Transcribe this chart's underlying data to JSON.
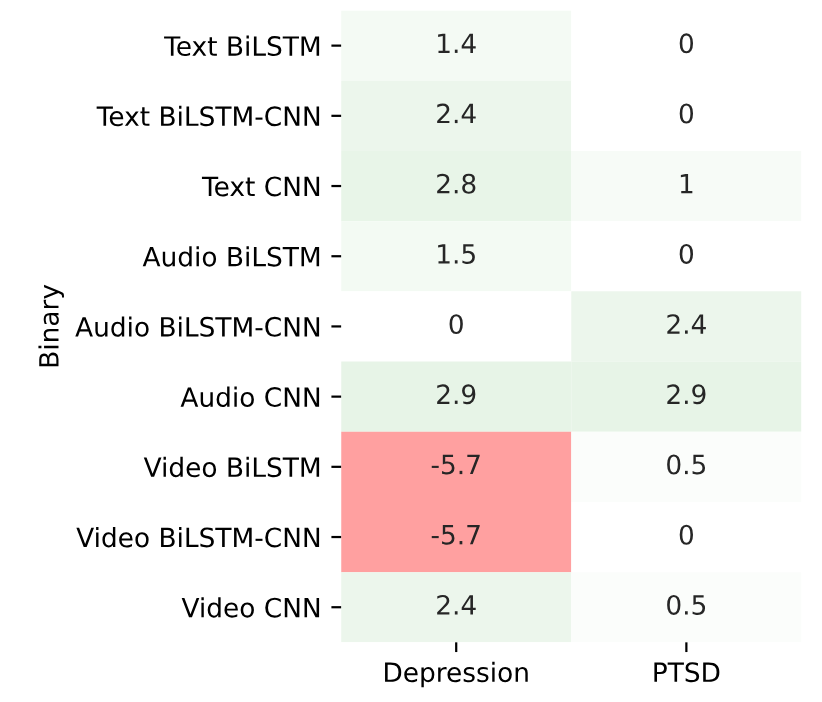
{
  "chart_data": {
    "type": "heatmap",
    "ylabel": "Binary",
    "categories": [
      "Depression",
      "PTSD"
    ],
    "y_categories": [
      "Text BiLSTM",
      "Text BiLSTM-CNN",
      "Text CNN",
      "Audio BiLSTM",
      "Audio BiLSTM-CNN",
      "Audio CNN",
      "Video BiLSTM",
      "Video BiLSTM-CNN",
      "Video CNN"
    ],
    "cells": [
      [
        1.4,
        0
      ],
      [
        2.4,
        0
      ],
      [
        2.8,
        1
      ],
      [
        1.5,
        0
      ],
      [
        0,
        2.4
      ],
      [
        2.9,
        2.9
      ],
      [
        -5.7,
        0.5
      ],
      [
        -5.7,
        0
      ],
      [
        2.4,
        0.5
      ]
    ],
    "data_labels": true
  }
}
